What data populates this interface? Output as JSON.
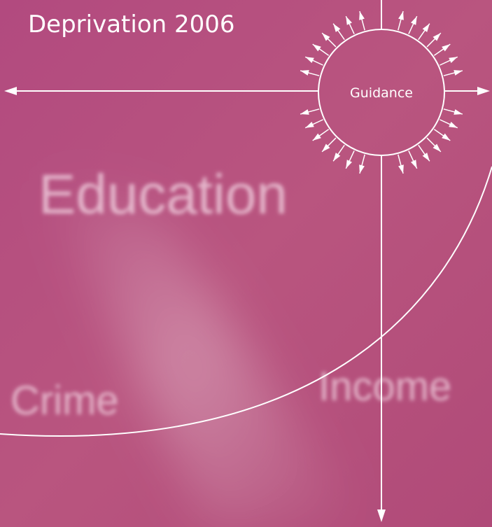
{
  "title": "Deprivation 2006",
  "badge": "Guidance",
  "background_words": [
    "Education",
    "Crime",
    "Income"
  ]
}
